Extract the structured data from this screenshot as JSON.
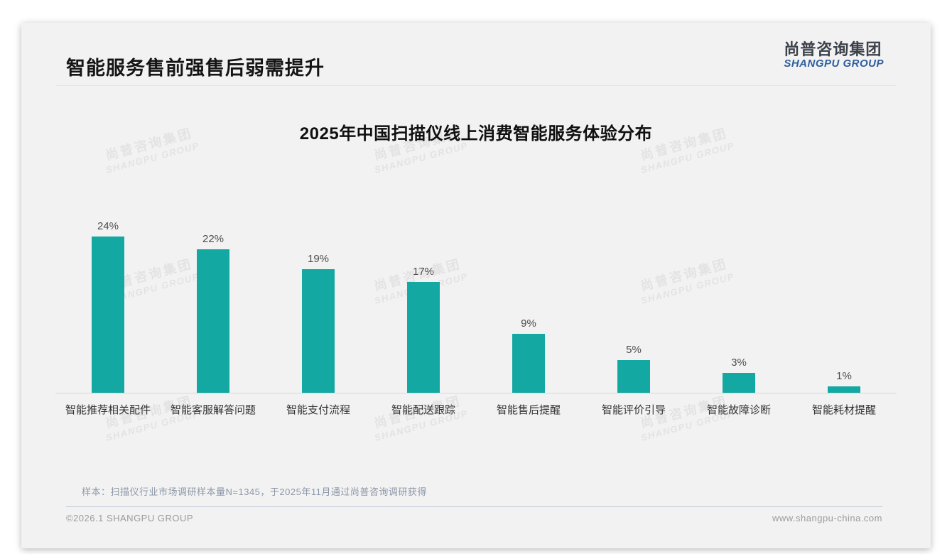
{
  "page": {
    "title": "智能服务售前强售后弱需提升",
    "logo": {
      "cn": "尚普咨询集团",
      "en": "SHANGPU GROUP"
    },
    "watermark": {
      "line1": "尚普咨询集团",
      "line2": "SHANGPU GROUP"
    },
    "note": "样本：扫描仪行业市场调研样本量N=1345，于2025年11月通过尚普咨询调研获得",
    "footer": {
      "left": "©2026.1 SHANGPU GROUP",
      "right": "www.shangpu-china.com"
    }
  },
  "chart_data": {
    "type": "bar",
    "title": "2025年中国扫描仪线上消费智能服务体验分布",
    "categories": [
      "智能推荐相关配件",
      "智能客服解答问题",
      "智能支付流程",
      "智能配送跟踪",
      "智能售后提醒",
      "智能评价引导",
      "智能故障诊断",
      "智能耗材提醒"
    ],
    "values": [
      24,
      22,
      19,
      17,
      9,
      5,
      3,
      1
    ],
    "value_labels": [
      "24%",
      "22%",
      "19%",
      "17%",
      "9%",
      "5%",
      "3%",
      "1%"
    ],
    "value_suffix": "%",
    "bar_color": "#14a8a2",
    "xlabel": "",
    "ylabel": "",
    "ylim": [
      0,
      26
    ],
    "grid": false,
    "legend": false,
    "value_labels_position": "above-bar"
  }
}
